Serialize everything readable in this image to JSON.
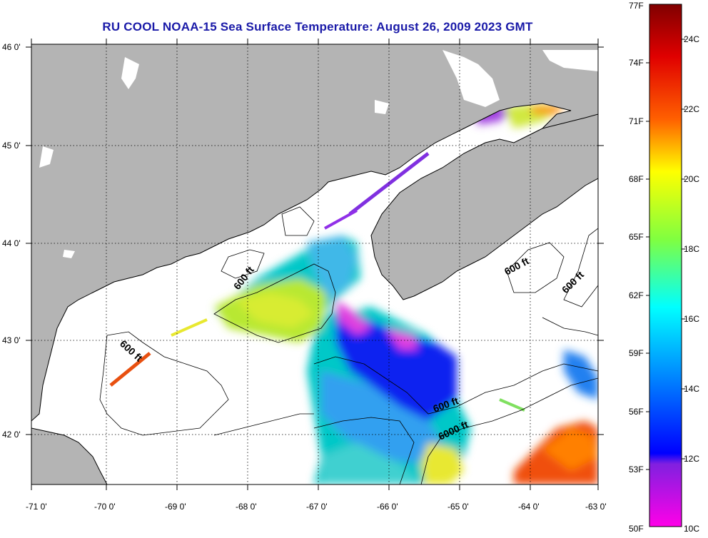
{
  "title": "RU COOL  NOAA-15  Sea Surface Temperature:  August 26, 2009 2023 GMT",
  "latitude_labels": [
    "46 0'",
    "45 0'",
    "44 0'",
    "43 0'",
    "42 0'"
  ],
  "longitude_labels": [
    "-71 0'",
    "-70 0'",
    "-69 0'",
    "-68 0'",
    "-67 0'",
    "-66 0'",
    "-65 0'",
    "-64 0'",
    "-63 0'"
  ],
  "contour_labels": [
    "600 ft",
    "600 ft",
    "600 ft",
    "600 ft",
    "600 ft",
    "6000 ft"
  ],
  "colorbar": {
    "fahrenheit_labels": [
      "77F",
      "74F",
      "71F",
      "68F",
      "65F",
      "62F",
      "59F",
      "56F",
      "53F",
      "50F"
    ],
    "celsius_labels": [
      "24C",
      "22C",
      "20C",
      "18C",
      "16C",
      "14C",
      "12C",
      "10C"
    ]
  },
  "colors": {
    "land": "#b4b4b4",
    "water_nodata": "#ffffff",
    "title": "#1a1aa8"
  }
}
